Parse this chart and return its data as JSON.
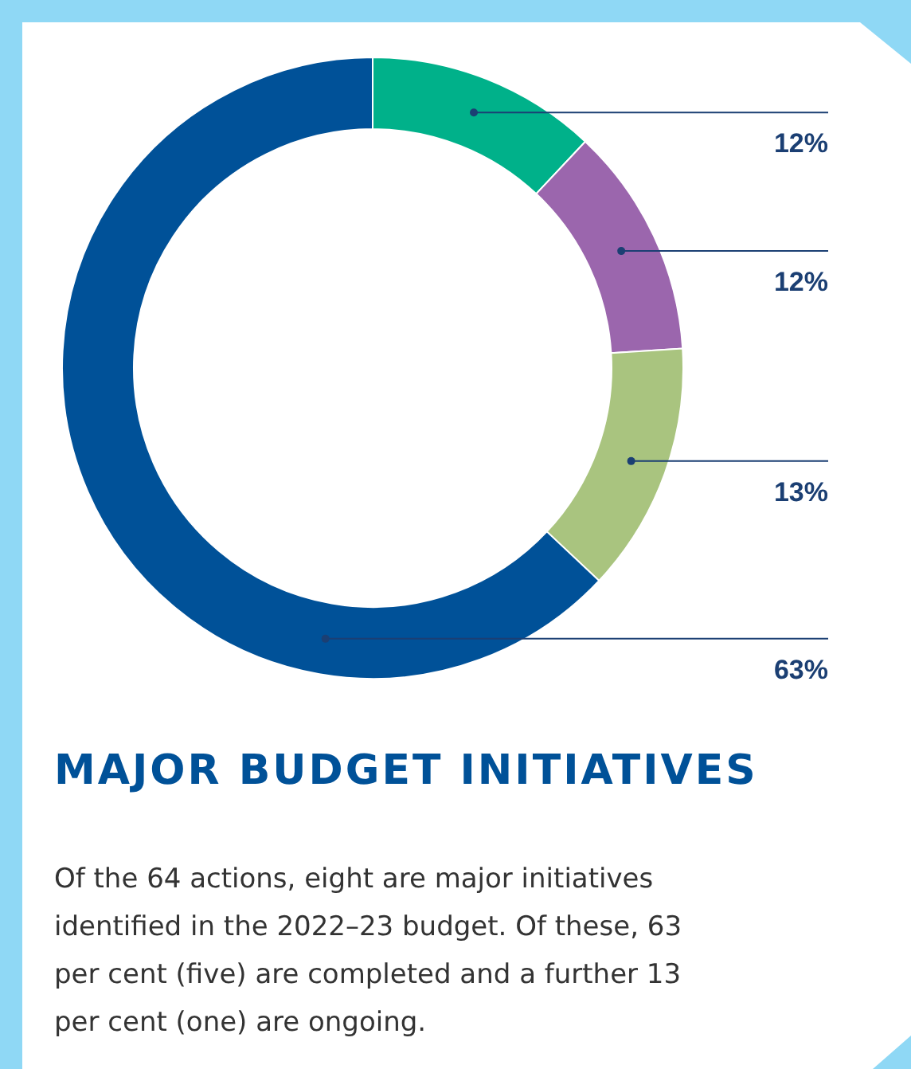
{
  "chart_data": {
    "type": "donut",
    "title": "MAJOR BUDGET INITIATIVES",
    "categories": [
      null,
      null,
      null,
      null
    ],
    "values": [
      12,
      12,
      13,
      63
    ],
    "colors": [
      "#00b18a",
      "#9b66ad",
      "#a9c47f",
      "#005198"
    ],
    "data_labels": true,
    "value_labels": [
      "12%",
      "12%",
      "13%",
      "63%"
    ],
    "annotations": [
      "Of the 64 actions, eight are major initiatives identified in the 2022–23 budget. Of these, 63 per cent (five) are completed and a further 13 per cent (one) are ongoing."
    ]
  }
}
